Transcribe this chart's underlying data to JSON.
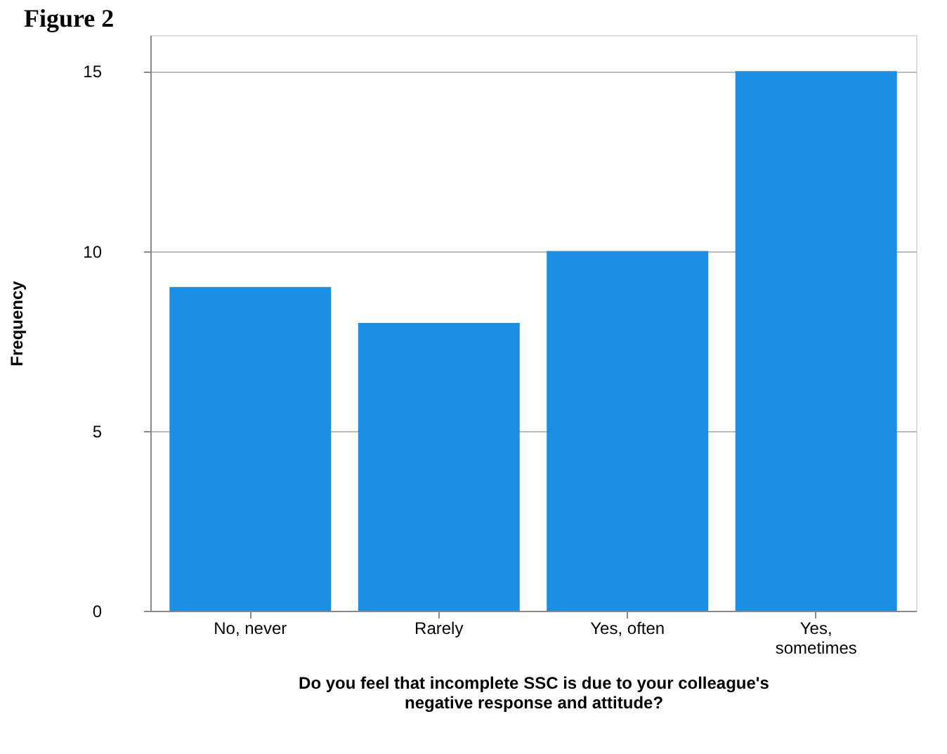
{
  "chart_data": {
    "type": "bar",
    "title": "Figure 2",
    "categories": [
      "No, never",
      "Rarely",
      "Yes, often",
      "Yes, sometimes"
    ],
    "values": [
      9,
      8,
      10,
      15
    ],
    "color": "#1a8fe3",
    "ylim": [
      0,
      16
    ],
    "yticks": [
      0,
      5,
      10,
      15
    ],
    "grid": "y",
    "xlabel": "Do you feel that incomplete SSC is due to your colleague's negative response and attitude?",
    "ylabel": "Frequency"
  }
}
